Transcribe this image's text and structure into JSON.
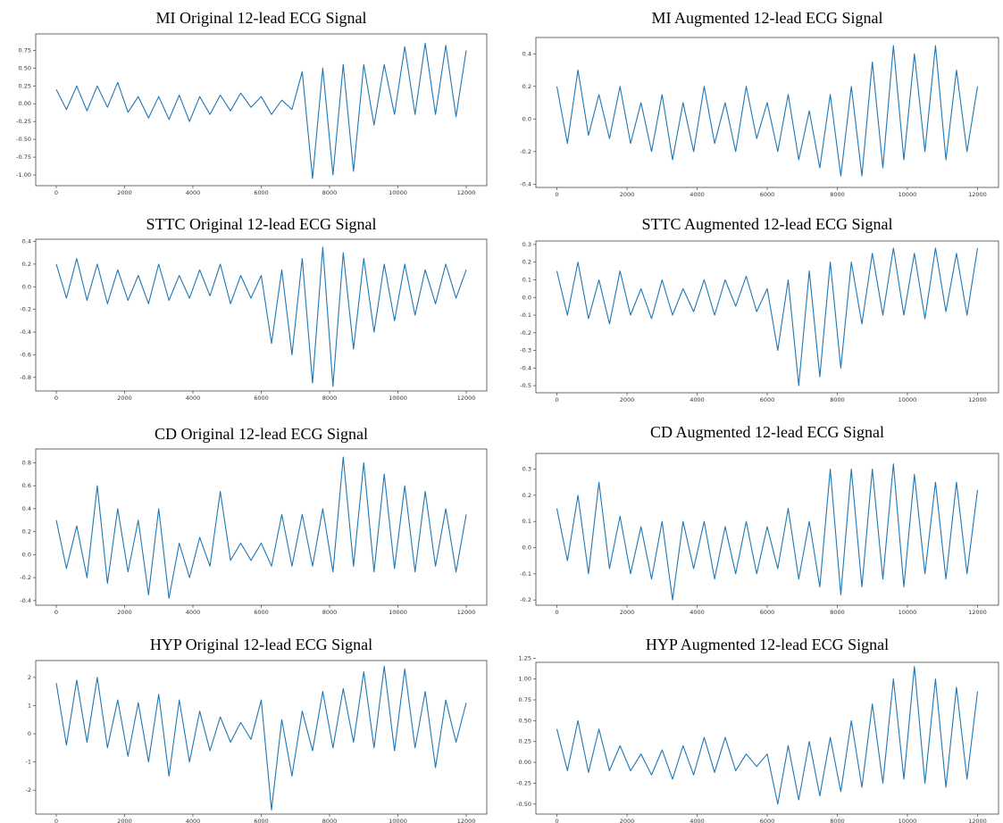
{
  "chart_data": [
    {
      "type": "line",
      "title": "MI Original 12-lead ECG Signal",
      "color": "#1f77b4",
      "x": [
        0,
        300,
        600,
        900,
        1200,
        1500,
        1800,
        2100,
        2400,
        2700,
        3000,
        3300,
        3600,
        3900,
        4200,
        4500,
        4800,
        5100,
        5400,
        5700,
        6000,
        6300,
        6600,
        6900,
        7200,
        7500,
        7800,
        8100,
        8400,
        8700,
        9000,
        9300,
        9600,
        9900,
        10200,
        10500,
        10800,
        11100,
        11400,
        11700,
        12000
      ],
      "values": [
        0.2,
        -0.08,
        0.25,
        -0.1,
        0.25,
        -0.05,
        0.3,
        -0.12,
        0.1,
        -0.2,
        0.1,
        -0.22,
        0.12,
        -0.25,
        0.1,
        -0.15,
        0.12,
        -0.1,
        0.15,
        -0.05,
        0.1,
        -0.15,
        0.05,
        -0.08,
        0.45,
        -1.05,
        0.5,
        -1.0,
        0.55,
        -0.95,
        0.55,
        -0.3,
        0.55,
        -0.15,
        0.8,
        -0.15,
        0.85,
        -0.15,
        0.82,
        -0.18,
        0.75
      ],
      "xlim": [
        -600,
        12600
      ],
      "ylim": [
        -1.15,
        0.98
      ],
      "xticks": [
        0,
        2000,
        4000,
        6000,
        8000,
        10000,
        12000
      ],
      "yticks": [
        {
          "value": -1,
          "label": "-1.00"
        },
        {
          "value": -0.75,
          "label": "-0.75"
        },
        {
          "value": -0.5,
          "label": "-0.50"
        },
        {
          "value": -0.25,
          "label": "-0.25"
        },
        {
          "value": 0,
          "label": "0.00"
        },
        {
          "value": 0.25,
          "label": "0.25"
        },
        {
          "value": 0.5,
          "label": "0.50"
        },
        {
          "value": 0.75,
          "label": "0.75"
        }
      ]
    },
    {
      "type": "line",
      "title": "MI Augmented 12-lead ECG Signal",
      "color": "#1f77b4",
      "x": [
        0,
        300,
        600,
        900,
        1200,
        1500,
        1800,
        2100,
        2400,
        2700,
        3000,
        3300,
        3600,
        3900,
        4200,
        4500,
        4800,
        5100,
        5400,
        5700,
        6000,
        6300,
        6600,
        6900,
        7200,
        7500,
        7800,
        8100,
        8400,
        8700,
        9000,
        9300,
        9600,
        9900,
        10200,
        10500,
        10800,
        11100,
        11400,
        11700,
        12000
      ],
      "values": [
        0.2,
        -0.15,
        0.3,
        -0.1,
        0.15,
        -0.12,
        0.2,
        -0.15,
        0.1,
        -0.2,
        0.15,
        -0.25,
        0.1,
        -0.2,
        0.2,
        -0.15,
        0.1,
        -0.2,
        0.2,
        -0.12,
        0.1,
        -0.2,
        0.15,
        -0.25,
        0.05,
        -0.3,
        0.15,
        -0.35,
        0.2,
        -0.35,
        0.35,
        -0.3,
        0.45,
        -0.25,
        0.4,
        -0.2,
        0.45,
        -0.25,
        0.3,
        -0.2,
        0.2
      ],
      "xlim": [
        -600,
        12600
      ],
      "ylim": [
        -0.42,
        0.5
      ],
      "xticks": [
        0,
        2000,
        4000,
        6000,
        8000,
        10000,
        12000
      ],
      "yticks": [
        -0.4,
        -0.2,
        {
          "value": 0,
          "label": "0.0"
        },
        0.2,
        0.4
      ]
    },
    {
      "type": "line",
      "title": "STTC Original 12-lead ECG Signal",
      "color": "#1f77b4",
      "x": [
        0,
        300,
        600,
        900,
        1200,
        1500,
        1800,
        2100,
        2400,
        2700,
        3000,
        3300,
        3600,
        3900,
        4200,
        4500,
        4800,
        5100,
        5400,
        5700,
        6000,
        6300,
        6600,
        6900,
        7200,
        7500,
        7800,
        8100,
        8400,
        8700,
        9000,
        9300,
        9600,
        9900,
        10200,
        10500,
        10800,
        11100,
        11400,
        11700,
        12000
      ],
      "values": [
        0.2,
        -0.1,
        0.25,
        -0.12,
        0.2,
        -0.15,
        0.15,
        -0.12,
        0.1,
        -0.15,
        0.2,
        -0.12,
        0.1,
        -0.1,
        0.15,
        -0.08,
        0.2,
        -0.15,
        0.1,
        -0.1,
        0.1,
        -0.5,
        0.15,
        -0.6,
        0.25,
        -0.85,
        0.35,
        -0.88,
        0.3,
        -0.55,
        0.25,
        -0.4,
        0.2,
        -0.3,
        0.2,
        -0.25,
        0.15,
        -0.15,
        0.2,
        -0.1,
        0.15
      ],
      "xlim": [
        -600,
        12600
      ],
      "ylim": [
        -0.92,
        0.42
      ],
      "xticks": [
        0,
        2000,
        4000,
        6000,
        8000,
        10000,
        12000
      ],
      "yticks": [
        -0.8,
        -0.6,
        -0.4,
        -0.2,
        {
          "value": 0,
          "label": "0.0"
        },
        0.2,
        0.4
      ]
    },
    {
      "type": "line",
      "title": "STTC Augmented 12-lead ECG Signal",
      "color": "#1f77b4",
      "x": [
        0,
        300,
        600,
        900,
        1200,
        1500,
        1800,
        2100,
        2400,
        2700,
        3000,
        3300,
        3600,
        3900,
        4200,
        4500,
        4800,
        5100,
        5400,
        5700,
        6000,
        6300,
        6600,
        6900,
        7200,
        7500,
        7800,
        8100,
        8400,
        8700,
        9000,
        9300,
        9600,
        9900,
        10200,
        10500,
        10800,
        11100,
        11400,
        11700,
        12000
      ],
      "values": [
        0.15,
        -0.1,
        0.2,
        -0.12,
        0.1,
        -0.15,
        0.15,
        -0.1,
        0.05,
        -0.12,
        0.1,
        -0.1,
        0.05,
        -0.08,
        0.1,
        -0.1,
        0.1,
        -0.05,
        0.12,
        -0.08,
        0.05,
        -0.3,
        0.1,
        -0.5,
        0.15,
        -0.45,
        0.2,
        -0.4,
        0.2,
        -0.15,
        0.25,
        -0.1,
        0.28,
        -0.1,
        0.25,
        -0.12,
        0.28,
        -0.08,
        0.25,
        -0.1,
        0.28
      ],
      "xlim": [
        -600,
        12600
      ],
      "ylim": [
        -0.54,
        0.32
      ],
      "xticks": [
        0,
        2000,
        4000,
        6000,
        8000,
        10000,
        12000
      ],
      "yticks": [
        -0.5,
        -0.4,
        -0.3,
        -0.2,
        -0.1,
        {
          "value": 0,
          "label": "0.0"
        },
        0.1,
        0.2,
        0.3
      ]
    },
    {
      "type": "line",
      "title": "CD Original 12-lead ECG Signal",
      "color": "#1f77b4",
      "x": [
        0,
        300,
        600,
        900,
        1200,
        1500,
        1800,
        2100,
        2400,
        2700,
        3000,
        3300,
        3600,
        3900,
        4200,
        4500,
        4800,
        5100,
        5400,
        5700,
        6000,
        6300,
        6600,
        6900,
        7200,
        7500,
        7800,
        8100,
        8400,
        8700,
        9000,
        9300,
        9600,
        9900,
        10200,
        10500,
        10800,
        11100,
        11400,
        11700,
        12000
      ],
      "values": [
        0.3,
        -0.12,
        0.25,
        -0.2,
        0.6,
        -0.25,
        0.4,
        -0.15,
        0.3,
        -0.35,
        0.4,
        -0.38,
        0.1,
        -0.2,
        0.15,
        -0.1,
        0.55,
        -0.05,
        0.1,
        -0.05,
        0.1,
        -0.1,
        0.35,
        -0.1,
        0.35,
        -0.1,
        0.4,
        -0.15,
        0.85,
        -0.1,
        0.8,
        -0.15,
        0.7,
        -0.12,
        0.6,
        -0.15,
        0.55,
        -0.1,
        0.4,
        -0.15,
        0.35
      ],
      "xlim": [
        -600,
        12600
      ],
      "ylim": [
        -0.44,
        0.92
      ],
      "xticks": [
        0,
        2000,
        4000,
        6000,
        8000,
        10000,
        12000
      ],
      "yticks": [
        -0.4,
        -0.2,
        {
          "value": 0,
          "label": "0.0"
        },
        0.2,
        0.4,
        0.6,
        0.8
      ]
    },
    {
      "type": "line",
      "title": "CD Augmented 12-lead ECG Signal",
      "color": "#1f77b4",
      "x": [
        0,
        300,
        600,
        900,
        1200,
        1500,
        1800,
        2100,
        2400,
        2700,
        3000,
        3300,
        3600,
        3900,
        4200,
        4500,
        4800,
        5100,
        5400,
        5700,
        6000,
        6300,
        6600,
        6900,
        7200,
        7500,
        7800,
        8100,
        8400,
        8700,
        9000,
        9300,
        9600,
        9900,
        10200,
        10500,
        10800,
        11100,
        11400,
        11700,
        12000
      ],
      "values": [
        0.15,
        -0.05,
        0.2,
        -0.1,
        0.25,
        -0.08,
        0.12,
        -0.1,
        0.08,
        -0.12,
        0.1,
        -0.2,
        0.1,
        -0.08,
        0.1,
        -0.12,
        0.08,
        -0.1,
        0.1,
        -0.1,
        0.08,
        -0.08,
        0.15,
        -0.12,
        0.1,
        -0.15,
        0.3,
        -0.18,
        0.3,
        -0.15,
        0.3,
        -0.12,
        0.32,
        -0.15,
        0.28,
        -0.1,
        0.25,
        -0.12,
        0.25,
        -0.1,
        0.22
      ],
      "xlim": [
        -600,
        12600
      ],
      "ylim": [
        -0.22,
        0.36
      ],
      "xticks": [
        0,
        2000,
        4000,
        6000,
        8000,
        10000,
        12000
      ],
      "yticks": [
        -0.2,
        -0.1,
        {
          "value": 0,
          "label": "0.0"
        },
        0.1,
        0.2,
        0.3
      ]
    },
    {
      "type": "line",
      "title": "HYP Original 12-lead ECG Signal",
      "color": "#1f77b4",
      "x": [
        0,
        300,
        600,
        900,
        1200,
        1500,
        1800,
        2100,
        2400,
        2700,
        3000,
        3300,
        3600,
        3900,
        4200,
        4500,
        4800,
        5100,
        5400,
        5700,
        6000,
        6300,
        6600,
        6900,
        7200,
        7500,
        7800,
        8100,
        8400,
        8700,
        9000,
        9300,
        9600,
        9900,
        10200,
        10500,
        10800,
        11100,
        11400,
        11700,
        12000
      ],
      "values": [
        1.8,
        -0.4,
        1.9,
        -0.3,
        2.0,
        -0.5,
        1.2,
        -0.8,
        1.1,
        -1.0,
        1.4,
        -1.5,
        1.2,
        -1.0,
        0.8,
        -0.6,
        0.6,
        -0.3,
        0.4,
        -0.2,
        1.2,
        -2.7,
        0.5,
        -1.5,
        0.8,
        -0.6,
        1.5,
        -0.5,
        1.6,
        -0.3,
        2.2,
        -0.5,
        2.4,
        -0.6,
        2.3,
        -0.5,
        1.5,
        -1.2,
        1.2,
        -0.3,
        1.1
      ],
      "xlim": [
        -600,
        12600
      ],
      "ylim": [
        -2.85,
        2.6
      ],
      "xticks": [
        0,
        2000,
        4000,
        6000,
        8000,
        10000,
        12000
      ],
      "yticks": [
        -2,
        -1,
        0,
        1,
        2
      ]
    },
    {
      "type": "line",
      "title": "HYP Augmented 12-lead ECG Signal",
      "color": "#1f77b4",
      "x": [
        0,
        300,
        600,
        900,
        1200,
        1500,
        1800,
        2100,
        2400,
        2700,
        3000,
        3300,
        3600,
        3900,
        4200,
        4500,
        4800,
        5100,
        5400,
        5700,
        6000,
        6300,
        6600,
        6900,
        7200,
        7500,
        7800,
        8100,
        8400,
        8700,
        9000,
        9300,
        9600,
        9900,
        10200,
        10500,
        10800,
        11100,
        11400,
        11700,
        12000
      ],
      "values": [
        0.4,
        -0.1,
        0.5,
        -0.12,
        0.4,
        -0.1,
        0.2,
        -0.1,
        0.1,
        -0.15,
        0.15,
        -0.2,
        0.2,
        -0.15,
        0.3,
        -0.12,
        0.3,
        -0.1,
        0.1,
        -0.05,
        0.1,
        -0.5,
        0.2,
        -0.45,
        0.25,
        -0.4,
        0.3,
        -0.35,
        0.5,
        -0.3,
        0.7,
        -0.25,
        1.0,
        -0.2,
        1.15,
        -0.25,
        1.0,
        -0.3,
        0.9,
        -0.2,
        0.85
      ],
      "xlim": [
        -600,
        12600
      ],
      "ylim": [
        -0.62,
        1.2
      ],
      "xticks": [
        0,
        2000,
        4000,
        6000,
        8000,
        10000,
        12000
      ],
      "yticks": [
        {
          "value": -0.5,
          "label": "-0.50"
        },
        {
          "value": -0.25,
          "label": "-0.25"
        },
        {
          "value": 0,
          "label": "0.00"
        },
        {
          "value": 0.25,
          "label": "0.25"
        },
        {
          "value": 0.5,
          "label": "0.50"
        },
        {
          "value": 0.75,
          "label": "0.75"
        },
        {
          "value": 1,
          "label": "1.00"
        },
        {
          "value": 1.25,
          "label": "1.25"
        }
      ]
    }
  ]
}
